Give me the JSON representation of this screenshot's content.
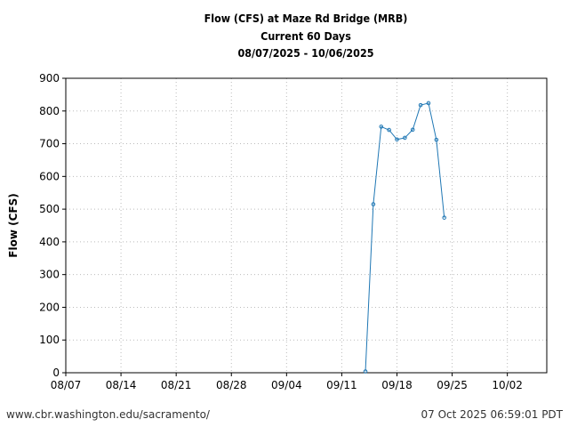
{
  "chart_data": {
    "type": "line",
    "title": [
      "Flow (CFS) at Maze Rd Bridge (MRB)",
      "Current 60 Days",
      "08/07/2025 - 10/06/2025"
    ],
    "xlabel": "",
    "ylabel": "Flow (CFS)",
    "xlim": [
      "2025-08-07",
      "2025-10-07"
    ],
    "ylim": [
      0,
      900
    ],
    "x_ticks": [
      "08/07",
      "08/14",
      "08/21",
      "08/28",
      "09/04",
      "09/11",
      "09/18",
      "09/25",
      "10/02"
    ],
    "x_tick_dates": [
      "2025-08-07",
      "2025-08-14",
      "2025-08-21",
      "2025-08-28",
      "2025-09-04",
      "2025-09-11",
      "2025-09-18",
      "2025-09-25",
      "2025-10-02"
    ],
    "y_ticks": [
      0,
      100,
      200,
      300,
      400,
      500,
      600,
      700,
      800,
      900
    ],
    "grid": true,
    "series": [
      {
        "color": "#1f77b4",
        "x": [
          "2025-09-14",
          "2025-09-15",
          "2025-09-16",
          "2025-09-17",
          "2025-09-18",
          "2025-09-19",
          "2025-09-20",
          "2025-09-21",
          "2025-09-22",
          "2025-09-23",
          "2025-09-24"
        ],
        "y": [
          4,
          515,
          752,
          742,
          713,
          718,
          743,
          818,
          824,
          712,
          474
        ]
      }
    ]
  },
  "footer": {
    "left": "www.cbr.washington.edu/sacramento/",
    "right": "07 Oct 2025 06:59:01 PDT"
  }
}
